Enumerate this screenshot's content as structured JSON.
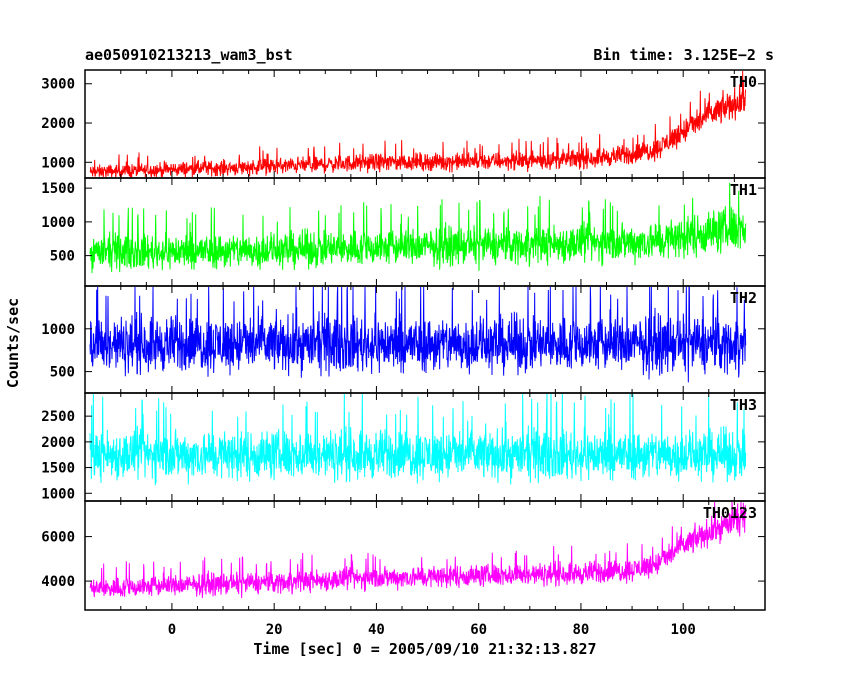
{
  "chart_data": {
    "type": "line",
    "title": "ae050910213213_wam3_bst",
    "subtitle": "Bin time: 3.125E−2 s",
    "xlabel": "Time [sec] 0 = 2005/09/10 21:32:13.827",
    "ylabel": "Counts/sec",
    "xlim": [
      -17,
      116
    ],
    "x_ticks": [
      0,
      20,
      40,
      60,
      80,
      100
    ],
    "x_range_data": [
      -16,
      112
    ],
    "panels": [
      {
        "name": "TH0",
        "color": "#ff0000",
        "ylim": [
          600,
          3350
        ],
        "y_ticks": [
          1000,
          2000,
          3000
        ],
        "x": [
          -16,
          0,
          20,
          40,
          60,
          80,
          90,
          95,
          100,
          105,
          110,
          112
        ],
        "mean": [
          750,
          820,
          900,
          1000,
          1020,
          1080,
          1200,
          1350,
          1800,
          2200,
          2500,
          2600
        ],
        "spread": [
          200,
          220,
          240,
          260,
          260,
          270,
          300,
          320,
          380,
          420,
          450,
          460
        ]
      },
      {
        "name": "TH1",
        "color": "#00ff00",
        "ylim": [
          50,
          1650
        ],
        "y_ticks": [
          500,
          1000,
          1500
        ],
        "x": [
          -16,
          0,
          20,
          40,
          60,
          80,
          90,
          95,
          100,
          105,
          110,
          112
        ],
        "mean": [
          550,
          560,
          580,
          620,
          650,
          680,
          700,
          720,
          780,
          850,
          900,
          920
        ],
        "spread": [
          300,
          300,
          310,
          320,
          320,
          330,
          330,
          340,
          360,
          380,
          400,
          400
        ]
      },
      {
        "name": "TH2",
        "color": "#0000ff",
        "ylim": [
          250,
          1500
        ],
        "y_ticks": [
          500,
          1000
        ],
        "x": [
          -16,
          112
        ],
        "mean": [
          820,
          820
        ],
        "spread": [
          380,
          380
        ]
      },
      {
        "name": "TH3",
        "color": "#00ffff",
        "ylim": [
          850,
          2950
        ],
        "y_ticks": [
          1000,
          1500,
          2000,
          2500
        ],
        "x": [
          -16,
          112
        ],
        "mean": [
          1750,
          1750
        ],
        "spread": [
          560,
          560
        ]
      },
      {
        "name": "TH0123",
        "color": "#ff00ff",
        "ylim": [
          2700,
          7600
        ],
        "y_ticks": [
          4000,
          6000
        ],
        "x": [
          -16,
          0,
          20,
          40,
          60,
          80,
          90,
          95,
          100,
          105,
          110,
          112
        ],
        "mean": [
          3650,
          3800,
          3950,
          4150,
          4250,
          4350,
          4500,
          4800,
          5600,
          6200,
          6700,
          6800
        ],
        "spread": [
          550,
          560,
          570,
          580,
          580,
          590,
          600,
          620,
          680,
          720,
          750,
          760
        ]
      }
    ]
  }
}
